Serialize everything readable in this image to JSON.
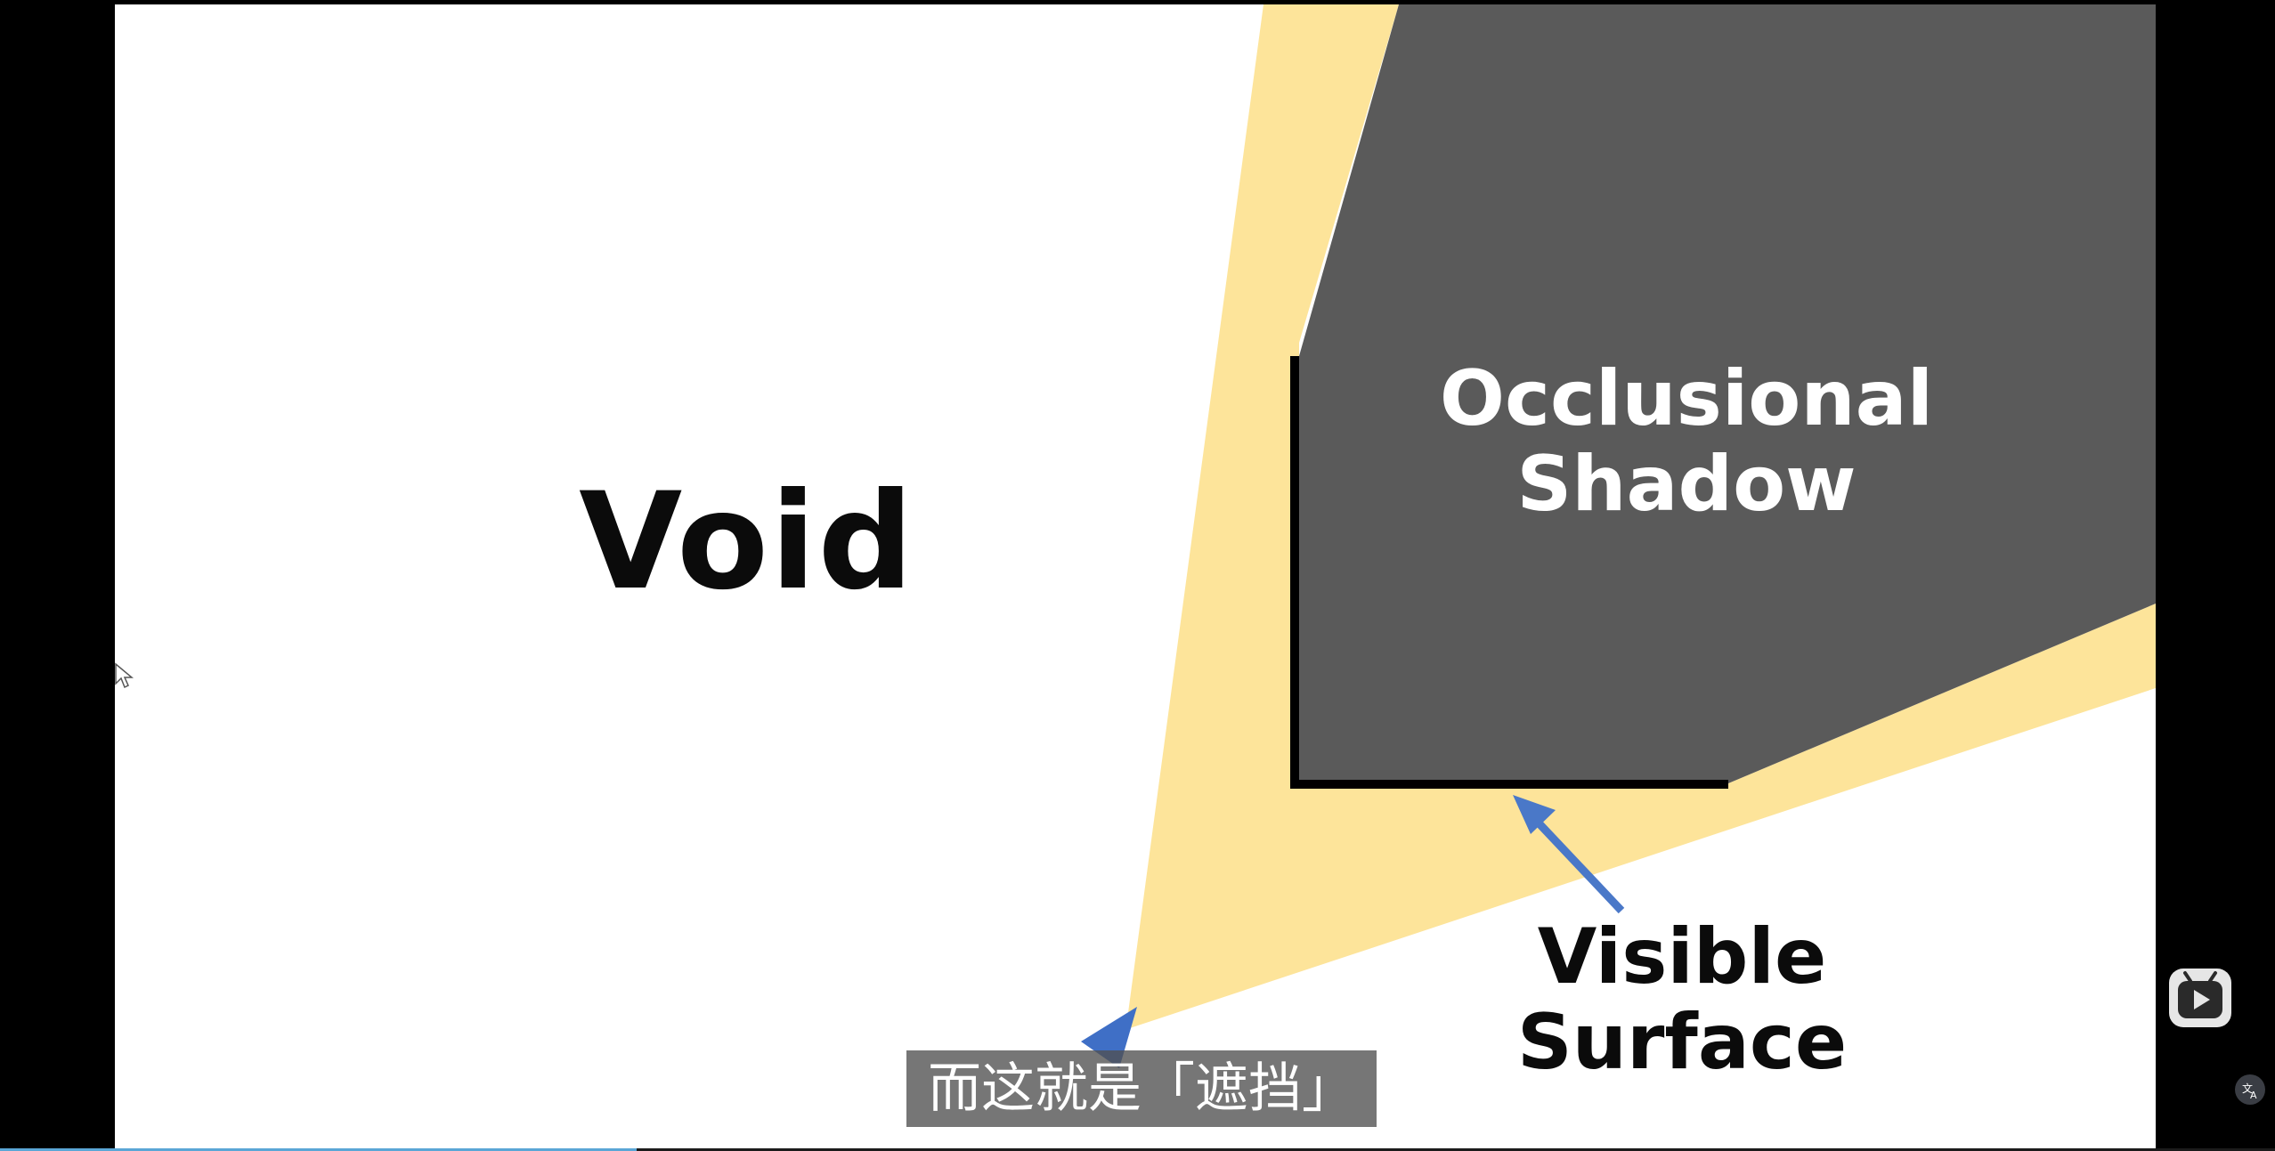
{
  "slide": {
    "labels": {
      "void": "Void",
      "occlusional_shadow_line1": "Occlusional",
      "occlusional_shadow_line2": "Shadow",
      "visible_surface_line1": "Visible",
      "visible_surface_line2": "Surface"
    },
    "colors": {
      "light_cone": "#fde49a",
      "shadow": "#5a5a5a",
      "surface": "#000000",
      "arrow": "#4a78c8",
      "viewer": "#3f6fc6"
    }
  },
  "subtitle": {
    "text": "而这就是「遮挡」"
  },
  "controls": {
    "play_icon": "tv-play-icon",
    "translate_icon": "translate-icon",
    "cursor_icon": "mouse-pointer-icon"
  },
  "progress": {
    "fraction": 0.28
  }
}
